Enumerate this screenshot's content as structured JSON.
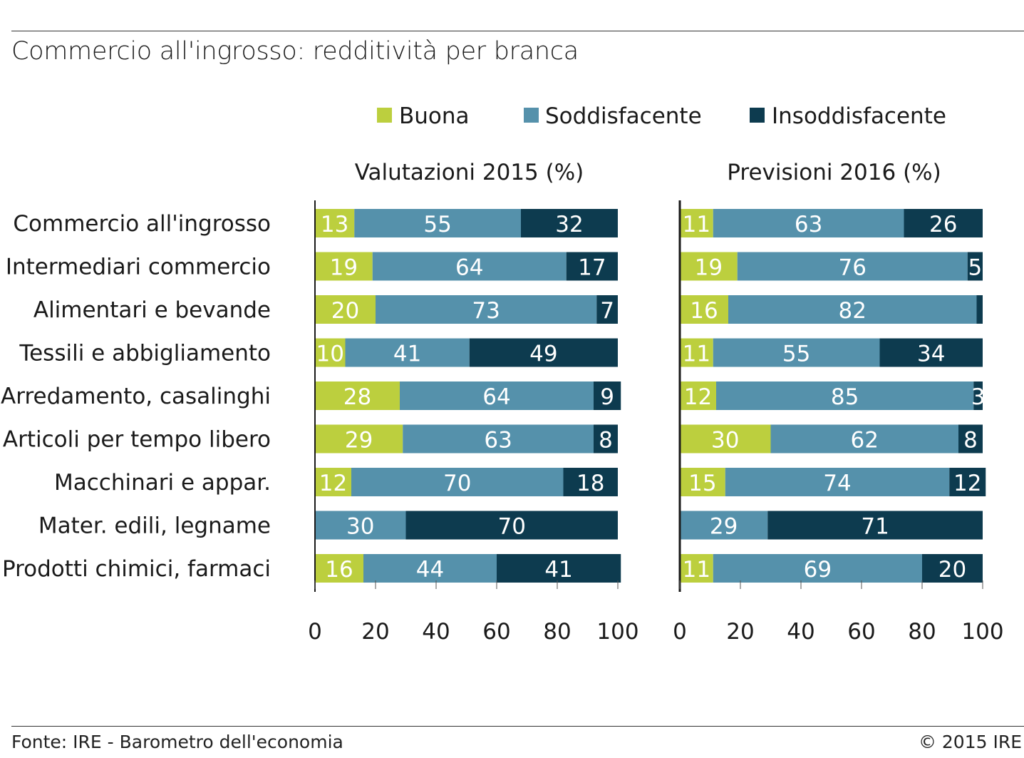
{
  "title": "Commercio all'ingrosso: redditività per branca",
  "footer": {
    "source": "Fonte: IRE - Barometro dell'economia",
    "copyright": "© 2015 IRE"
  },
  "colors": {
    "buona": "#bccf3e",
    "soddisfacente": "#5591ab",
    "insoddisfacente": "#0d3b4f"
  },
  "chart_data": {
    "type": "bar",
    "orientation": "horizontal-stacked",
    "legend": [
      "Buona",
      "Soddisfacente",
      "Insoddisfacente"
    ],
    "legend_position": "top",
    "categories": [
      "Commercio all'ingrosso",
      "Intermediari commercio",
      "Alimentari e bevande",
      "Tessili e abbigliamento",
      "Arredamento, casalinghi",
      "Articoli per tempo libero",
      "Macchinari e appar.",
      "Mater. edili, legname",
      "Prodotti chimici, farmaci"
    ],
    "xlim": [
      0,
      100
    ],
    "xticks": [
      0,
      20,
      40,
      60,
      80,
      100
    ],
    "panels": [
      {
        "title": "Valutazioni 2015 (%)",
        "series": [
          {
            "name": "Buona",
            "values": [
              13,
              19,
              20,
              10,
              28,
              29,
              12,
              0,
              16
            ]
          },
          {
            "name": "Soddisfacente",
            "values": [
              55,
              64,
              73,
              41,
              64,
              63,
              70,
              30,
              44
            ]
          },
          {
            "name": "Insoddisfacente",
            "values": [
              32,
              17,
              7,
              49,
              9,
              8,
              18,
              70,
              41
            ]
          }
        ]
      },
      {
        "title": "Previsioni 2016 (%)",
        "series": [
          {
            "name": "Buona",
            "values": [
              11,
              19,
              16,
              11,
              12,
              30,
              15,
              0,
              11
            ]
          },
          {
            "name": "Soddisfacente",
            "values": [
              63,
              76,
              82,
              55,
              85,
              62,
              74,
              29,
              69
            ]
          },
          {
            "name": "Insoddisfacente",
            "values": [
              26,
              5,
              2,
              34,
              3,
              8,
              12,
              71,
              20
            ]
          }
        ]
      }
    ]
  }
}
